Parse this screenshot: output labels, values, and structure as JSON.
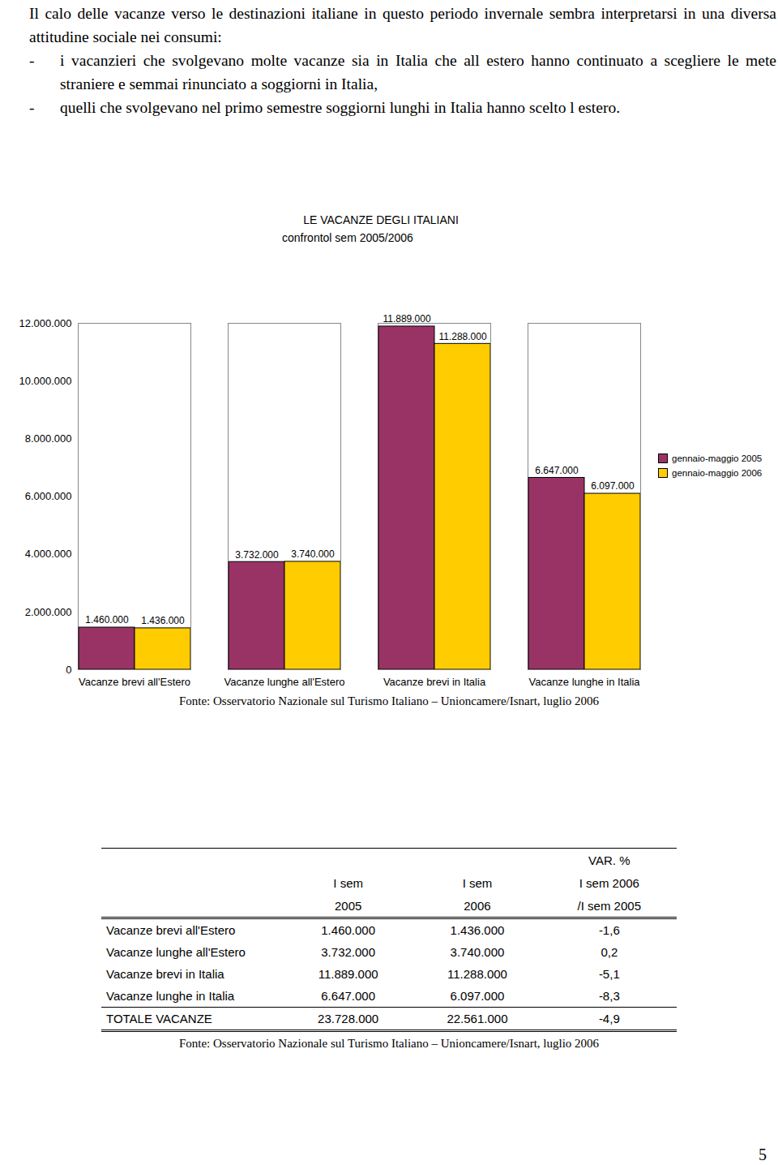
{
  "paragraph": "Il calo delle vacanze verso le destinazioni italiane in questo periodo invernale sembra interpretarsi in una diversa attitudine sociale nei consumi:",
  "bullet_marker": "-",
  "bullets": [
    "i vacanzieri che svolgevano molte vacanze sia in Italia che all estero hanno continuato a scegliere le mete straniere e semmai rinunciato a soggiorni in Italia,",
    "quelli che svolgevano nel primo semestre soggiorni lunghi in Italia hanno scelto l estero."
  ],
  "chart_data": {
    "type": "bar",
    "title": "LE VACANZE DEGLI ITALIANI",
    "subtitle": "confrontol sem 2005/2006",
    "categories": [
      "Vacanze brevi all'Estero",
      "Vacanze lunghe all'Estero",
      "Vacanze brevi in Italia",
      "Vacanze lunghe in Italia"
    ],
    "series": [
      {
        "name": "gennaio-maggio 2005",
        "color": "#993366",
        "values": [
          1460000,
          3732000,
          11889000,
          6647000
        ],
        "value_labels": [
          "1.460.000",
          "3.732.000",
          "11.889.000",
          "6.647.000"
        ]
      },
      {
        "name": "gennaio-maggio 2006",
        "color": "#ffcc00",
        "values": [
          1436000,
          3740000,
          11288000,
          6097000
        ],
        "value_labels": [
          "1.436.000",
          "3.740.000",
          "11.288.000",
          "6.097.000"
        ]
      }
    ],
    "ylim": [
      0,
      12000000
    ],
    "yticks": [
      0,
      {
        "value": 2000000,
        "label": "2.000.000"
      },
      {
        "value": 4000000,
        "label": "4.000.000"
      },
      {
        "value": 6000000,
        "label": "6.000.000"
      },
      {
        "value": 8000000,
        "label": "8.000.000"
      },
      {
        "value": 10000000,
        "label": "10.000.000"
      },
      {
        "value": 12000000,
        "label": "12.000.000"
      }
    ],
    "data_labels": true,
    "legend": "right"
  },
  "chart_source": "Fonte: Osservatorio Nazionale sul Turismo Italiano – Unioncamere/Isnart, luglio 2006",
  "table": {
    "header": [
      {
        "lines": [
          "I sem",
          "2005"
        ]
      },
      {
        "lines": [
          "I sem",
          "2006"
        ]
      },
      {
        "lines": [
          "VAR. %",
          "I sem 2006",
          "/I sem 2005"
        ]
      }
    ],
    "rows": [
      [
        "Vacanze brevi all'Estero",
        "1.460.000",
        "1.436.000",
        "-1,6"
      ],
      [
        "Vacanze lunghe all'Estero",
        "3.732.000",
        "3.740.000",
        "0,2"
      ],
      [
        "Vacanze brevi in Italia",
        "11.889.000",
        "11.288.000",
        "-5,1"
      ],
      [
        "Vacanze lunghe in Italia",
        "6.647.000",
        "6.097.000",
        "-8,3"
      ]
    ],
    "total": [
      "TOTALE VACANZE",
      "23.728.000",
      "22.561.000",
      "-4,9"
    ],
    "source": "Fonte: Osservatorio Nazionale sul Turismo Italiano – Unioncamere/Isnart, luglio 2006"
  },
  "page_number": "5"
}
